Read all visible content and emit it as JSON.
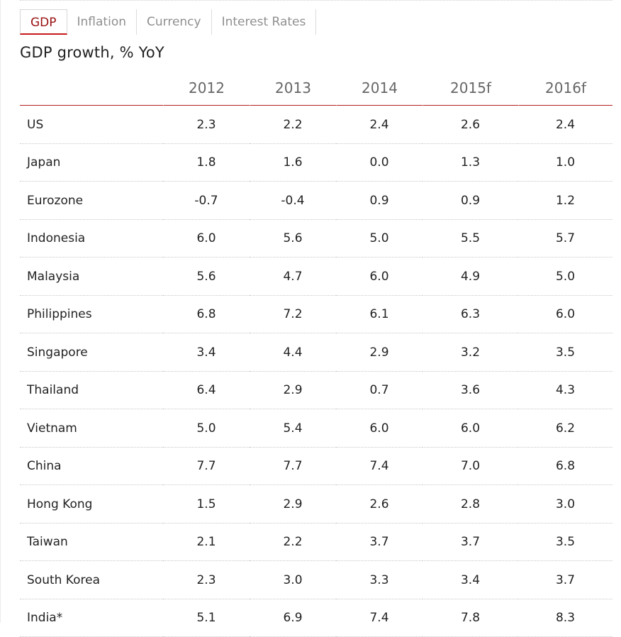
{
  "tabs": [
    {
      "label": "GDP",
      "active": true
    },
    {
      "label": "Inflation",
      "active": false
    },
    {
      "label": "Currency",
      "active": false
    },
    {
      "label": "Interest Rates",
      "active": false
    }
  ],
  "title": "GDP growth, % YoY",
  "colors": {
    "accent": "#c81919",
    "active_tab_text": "#9a1010",
    "muted_text": "#8f8f8f"
  },
  "table": {
    "columns": [
      "",
      "2012",
      "2013",
      "2014",
      "2015f",
      "2016f"
    ],
    "rows": [
      {
        "country": "US",
        "values": [
          "2.3",
          "2.2",
          "2.4",
          "2.6",
          "2.4"
        ]
      },
      {
        "country": "Japan",
        "values": [
          "1.8",
          "1.6",
          "0.0",
          "1.3",
          "1.0"
        ]
      },
      {
        "country": "Eurozone",
        "values": [
          "-0.7",
          "-0.4",
          "0.9",
          "0.9",
          "1.2"
        ]
      },
      {
        "country": "Indonesia",
        "values": [
          "6.0",
          "5.6",
          "5.0",
          "5.5",
          "5.7"
        ]
      },
      {
        "country": "Malaysia",
        "values": [
          "5.6",
          "4.7",
          "6.0",
          "4.9",
          "5.0"
        ]
      },
      {
        "country": "Philippines",
        "values": [
          "6.8",
          "7.2",
          "6.1",
          "6.3",
          "6.0"
        ]
      },
      {
        "country": "Singapore",
        "values": [
          "3.4",
          "4.4",
          "2.9",
          "3.2",
          "3.5"
        ]
      },
      {
        "country": "Thailand",
        "values": [
          "6.4",
          "2.9",
          "0.7",
          "3.6",
          "4.3"
        ]
      },
      {
        "country": "Vietnam",
        "values": [
          "5.0",
          "5.4",
          "6.0",
          "6.0",
          "6.2"
        ]
      },
      {
        "country": "China",
        "values": [
          "7.7",
          "7.7",
          "7.4",
          "7.0",
          "6.8"
        ]
      },
      {
        "country": "Hong Kong",
        "values": [
          "1.5",
          "2.9",
          "2.6",
          "2.8",
          "3.0"
        ]
      },
      {
        "country": "Taiwan",
        "values": [
          "2.1",
          "2.2",
          "3.7",
          "3.7",
          "3.5"
        ]
      },
      {
        "country": "South Korea",
        "values": [
          "2.3",
          "3.0",
          "3.3",
          "3.4",
          "3.7"
        ]
      },
      {
        "country": "India*",
        "values": [
          "5.1",
          "6.9",
          "7.4",
          "7.8",
          "8.3"
        ]
      }
    ]
  }
}
